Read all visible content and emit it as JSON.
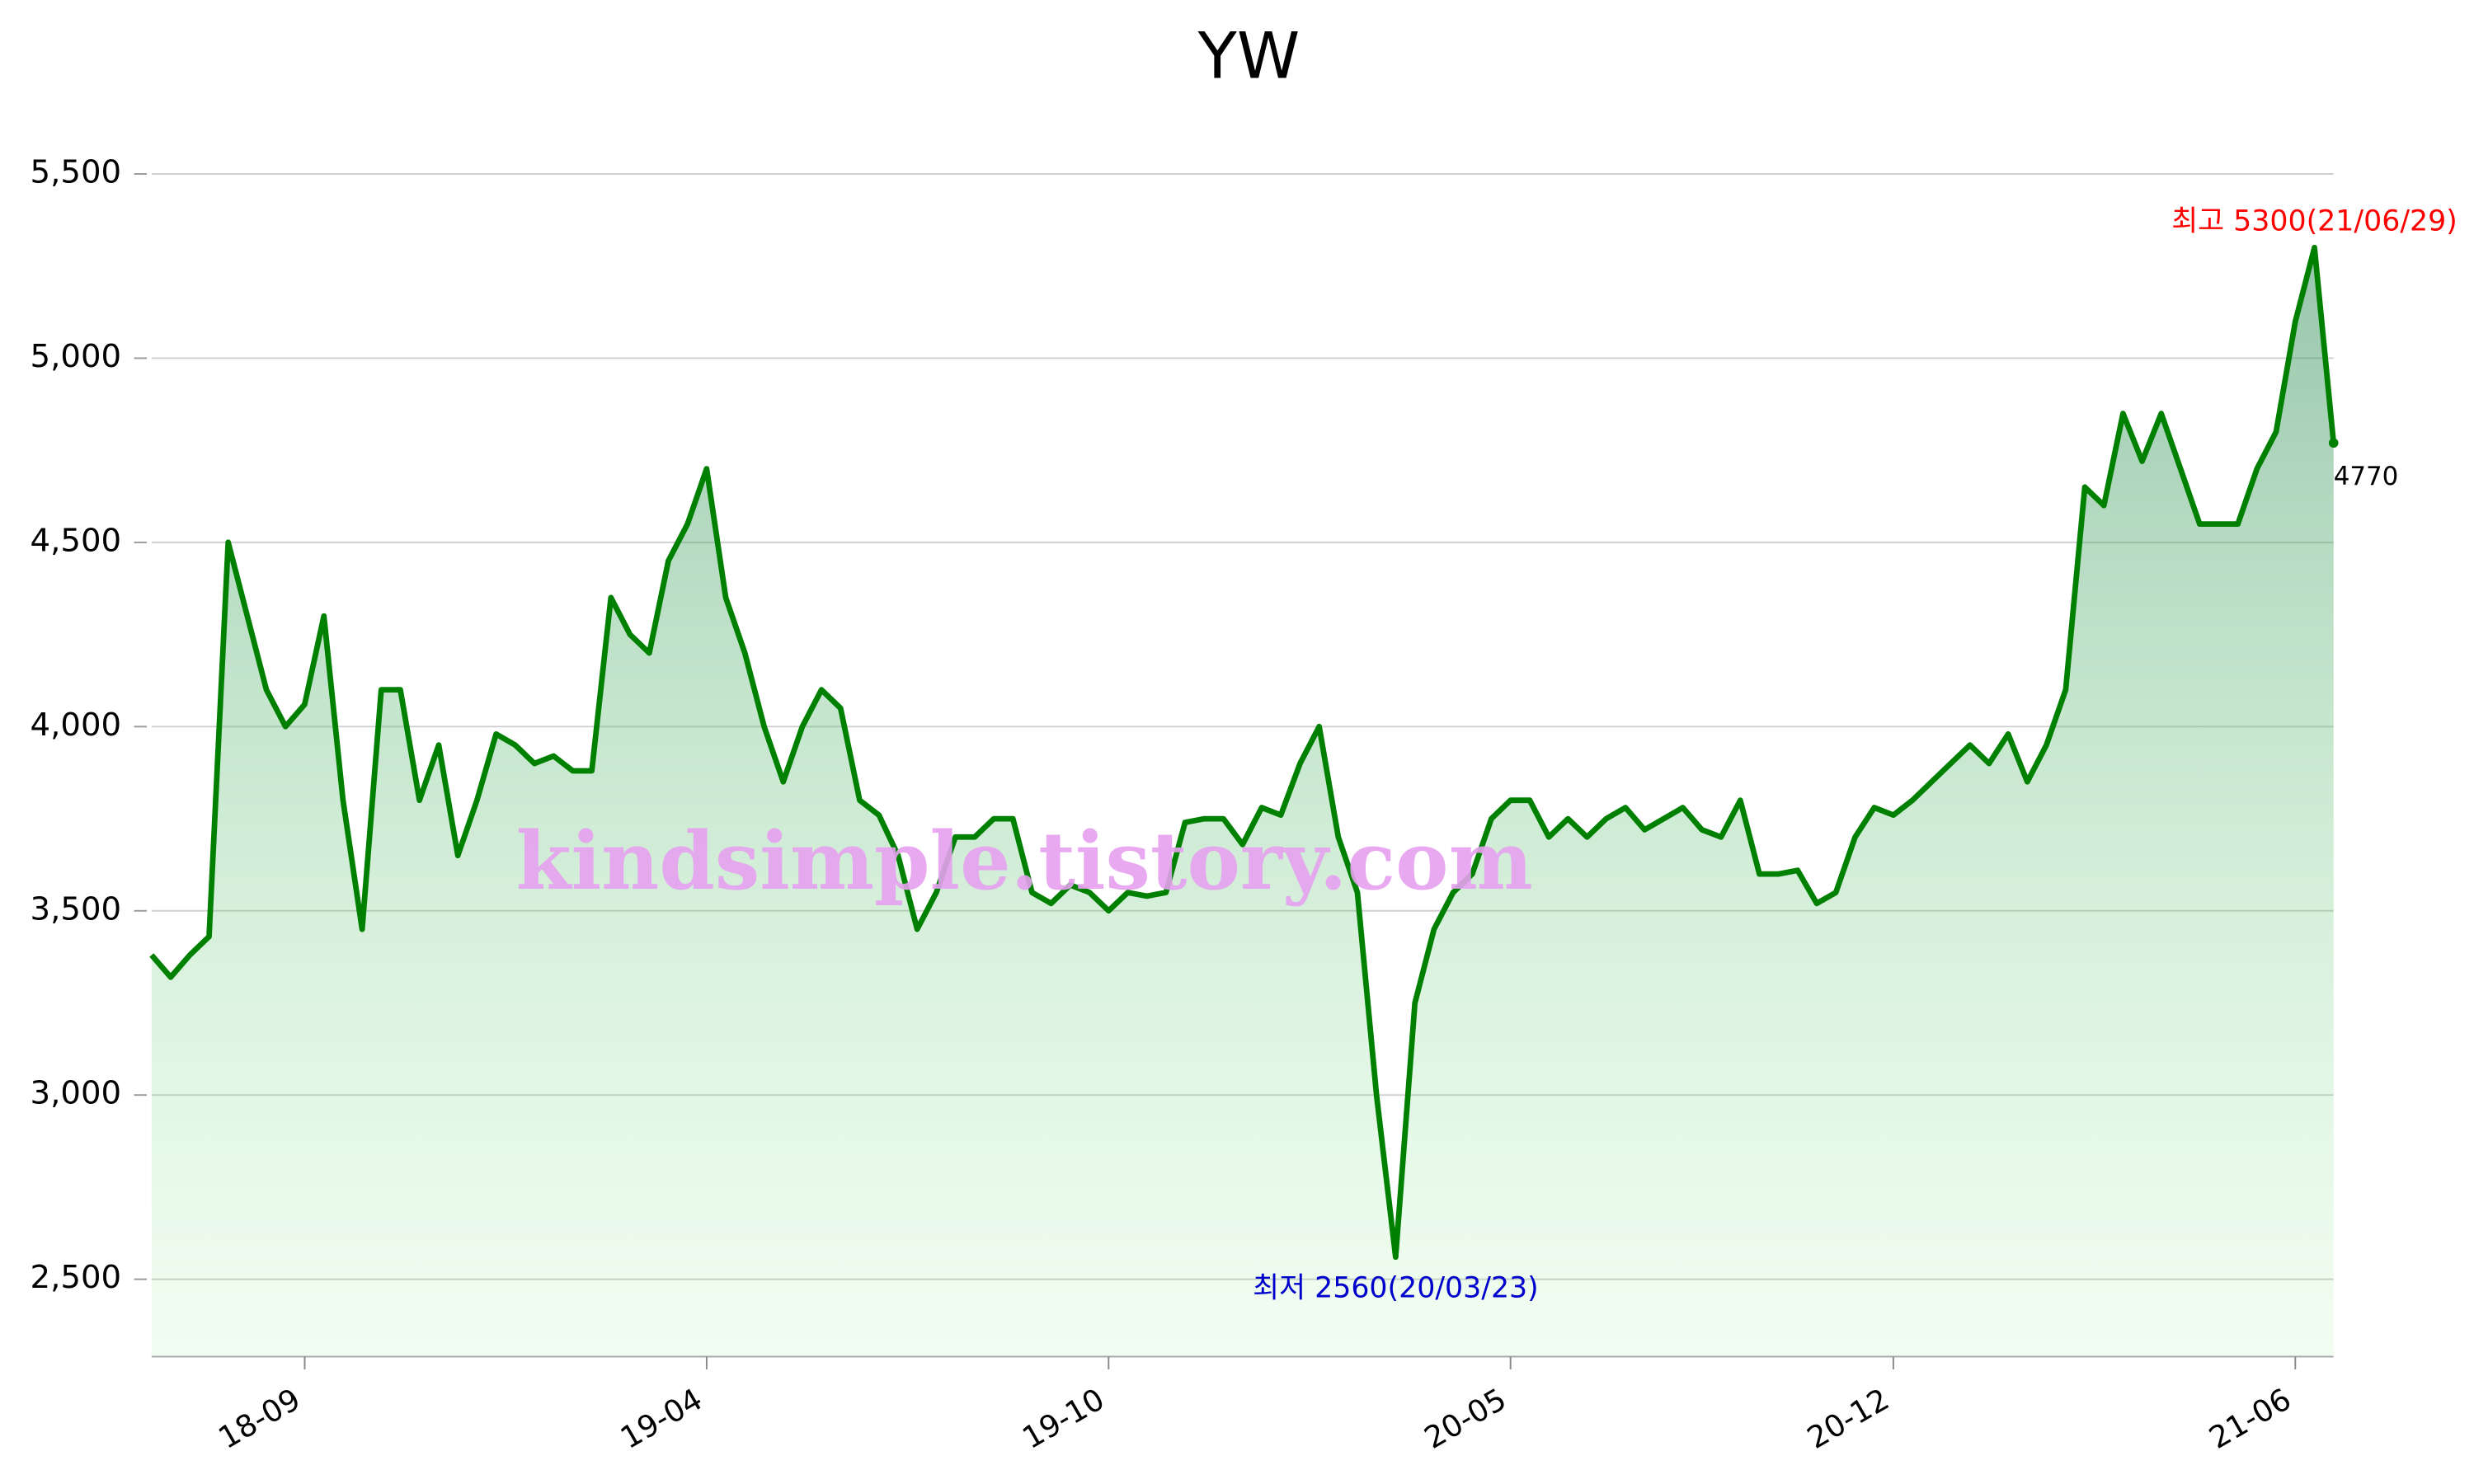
{
  "chart_data": {
    "type": "line",
    "title": "YW",
    "categories": [
      null,
      null,
      null,
      null,
      null,
      null,
      null,
      null,
      "18-09",
      null,
      null,
      null,
      null,
      null,
      null,
      null,
      null,
      null,
      null,
      null,
      null,
      null,
      null,
      null,
      null,
      null,
      null,
      null,
      null,
      "19-04",
      null,
      null,
      null,
      null,
      null,
      null,
      null,
      null,
      null,
      null,
      null,
      null,
      null,
      null,
      null,
      null,
      null,
      null,
      null,
      null,
      "19-10",
      null,
      null,
      null,
      null,
      null,
      null,
      null,
      null,
      null,
      null,
      null,
      null,
      null,
      null,
      null,
      null,
      null,
      null,
      null,
      null,
      "20-05",
      null,
      null,
      null,
      null,
      null,
      null,
      null,
      null,
      null,
      null,
      null,
      null,
      null,
      null,
      null,
      null,
      null,
      null,
      null,
      "20-12",
      null,
      null,
      null,
      null,
      null,
      null,
      null,
      null,
      null,
      null,
      null,
      null,
      null,
      null,
      null,
      null,
      null,
      null,
      null,
      null,
      "21-06",
      null,
      null
    ],
    "series": [
      {
        "name": "YW",
        "color": "#008000",
        "values": [
          3380,
          3320,
          3380,
          3430,
          4500,
          4300,
          4100,
          4000,
          4060,
          4300,
          3800,
          3450,
          4100,
          4100,
          3800,
          3950,
          3650,
          3800,
          3980,
          3950,
          3900,
          3920,
          3880,
          3880,
          4350,
          4250,
          4200,
          4450,
          4550,
          4700,
          4350,
          4200,
          4000,
          3850,
          4000,
          4100,
          4050,
          3800,
          3760,
          3650,
          3450,
          3550,
          3700,
          3700,
          3750,
          3750,
          3550,
          3520,
          3570,
          3550,
          3500,
          3550,
          3540,
          3550,
          3740,
          3750,
          3750,
          3680,
          3780,
          3760,
          3900,
          4000,
          3700,
          3550,
          3000,
          2560,
          3250,
          3450,
          3550,
          3600,
          3750,
          3800,
          3800,
          3700,
          3750,
          3700,
          3750,
          3780,
          3720,
          3750,
          3780,
          3720,
          3700,
          3800,
          3600,
          3600,
          3610,
          3520,
          3550,
          3700,
          3780,
          3760,
          3800,
          3850,
          3900,
          3950,
          3900,
          3980,
          3850,
          3950,
          4100,
          4650,
          4600,
          4850,
          4720,
          4850,
          4700,
          4550,
          4550,
          4550,
          4700,
          4800,
          5100,
          5300,
          4770
        ]
      }
    ],
    "ylim": [
      2290,
      5540
    ],
    "yticks": [
      {
        "value": 2500,
        "label": "2,500"
      },
      {
        "value": 3000,
        "label": "3,000"
      },
      {
        "value": 3500,
        "label": "3,500"
      },
      {
        "value": 4000,
        "label": "4,000"
      },
      {
        "value": 4500,
        "label": "4,500"
      },
      {
        "value": 5000,
        "label": "5,000"
      },
      {
        "value": 5500,
        "label": "5,500"
      }
    ],
    "grid": true,
    "annotations": {
      "high": "최고 5300(21/06/29)",
      "low": "최저 2560(20/03/23)",
      "watermark": "kindsimple.tistory.com"
    },
    "high_color": "#ff0000",
    "low_color": "#0000cc"
  }
}
